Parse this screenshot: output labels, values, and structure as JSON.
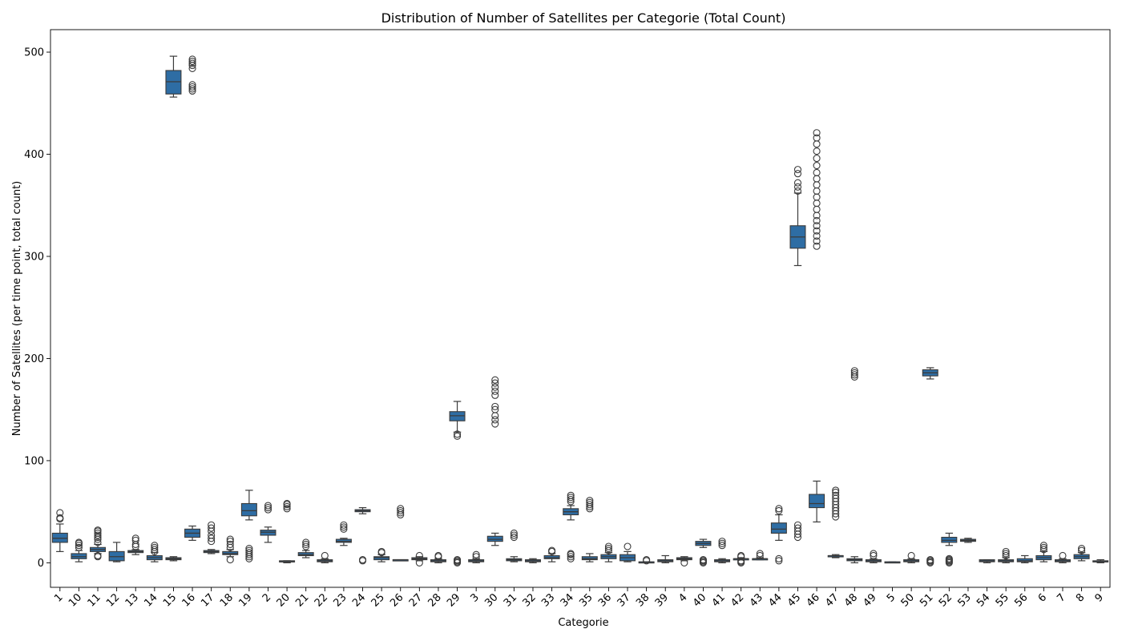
{
  "chart_data": {
    "type": "box",
    "title": "Distribution of Number of Satellites per Categorie (Total Count)",
    "xlabel": "Categorie",
    "ylabel": "Number of Satellites (per time point, total count)",
    "ylim": [
      -24,
      522
    ],
    "yticks": [
      0,
      100,
      200,
      300,
      400,
      500
    ],
    "grid": false,
    "legend": "none",
    "box_color": "#2e6da4",
    "line_color": "#3b3b3b",
    "series": [
      {
        "category": "1",
        "whislo": 11,
        "q1": 20,
        "med": 24,
        "q3": 29,
        "whishi": 38,
        "fliers": [
          43,
          44,
          49
        ]
      },
      {
        "category": "10",
        "whislo": 1,
        "q1": 4,
        "med": 6,
        "q3": 9,
        "whishi": 12,
        "fliers": [
          15,
          17,
          19,
          20
        ]
      },
      {
        "category": "11",
        "whislo": 9,
        "q1": 11,
        "med": 13,
        "q3": 15,
        "whishi": 18,
        "fliers": [
          6,
          7,
          20,
          23,
          25,
          27,
          29,
          31,
          32
        ]
      },
      {
        "category": "12",
        "whislo": 1,
        "q1": 2,
        "med": 6,
        "q3": 11,
        "whishi": 20,
        "fliers": []
      },
      {
        "category": "13",
        "whislo": 8,
        "q1": 10,
        "med": 11,
        "q3": 12,
        "whishi": 13,
        "fliers": [
          16,
          18,
          22,
          24
        ]
      },
      {
        "category": "14",
        "whislo": 1,
        "q1": 3,
        "med": 5,
        "q3": 7,
        "whishi": 10,
        "fliers": [
          11,
          13,
          15,
          17
        ]
      },
      {
        "category": "15",
        "whislo": 2,
        "q1": 3,
        "med": 4,
        "q3": 5,
        "whishi": 6,
        "fliers": []
      },
      {
        "category": "15",
        "whislo": 456,
        "q1": 459,
        "med": 471,
        "q3": 482,
        "whishi": 496,
        "fliers": []
      },
      {
        "category": "16",
        "whislo": 22,
        "q1": 25,
        "med": 29,
        "q3": 33,
        "whishi": 36,
        "fliers": []
      },
      {
        "category": "16",
        "whislo": 0,
        "q1": 0,
        "med": 0,
        "q3": 0,
        "whishi": 0,
        "fliers": [
          462,
          464,
          466,
          468,
          484,
          487,
          489,
          491,
          493
        ]
      },
      {
        "category": "17",
        "whislo": 9,
        "q1": 10,
        "med": 11,
        "q3": 12,
        "whishi": 13,
        "fliers": [
          21,
          24,
          27,
          31,
          34,
          37
        ]
      },
      {
        "category": "18",
        "whislo": 6,
        "q1": 8,
        "med": 9,
        "q3": 11,
        "whishi": 13,
        "fliers": [
          3,
          15,
          18,
          21,
          23
        ]
      },
      {
        "category": "19",
        "whislo": 42,
        "q1": 46,
        "med": 51,
        "q3": 58,
        "whishi": 71,
        "fliers": [
          4,
          6,
          8,
          10,
          12,
          14
        ]
      },
      {
        "category": "2",
        "whislo": 20,
        "q1": 27,
        "med": 30,
        "q3": 32,
        "whishi": 35,
        "fliers": [
          52,
          54,
          56
        ]
      },
      {
        "category": "20",
        "whislo": 0,
        "q1": 1,
        "med": 1,
        "q3": 2,
        "whishi": 2,
        "fliers": [
          53,
          55,
          57,
          58
        ]
      },
      {
        "category": "21",
        "whislo": 5,
        "q1": 7,
        "med": 8,
        "q3": 10,
        "whishi": 12,
        "fliers": [
          16,
          18,
          20
        ]
      },
      {
        "category": "22",
        "whislo": 0,
        "q1": 1,
        "med": 2,
        "q3": 3,
        "whishi": 4,
        "fliers": [
          7
        ]
      },
      {
        "category": "23",
        "whislo": 17,
        "q1": 20,
        "med": 21,
        "q3": 23,
        "whishi": 24,
        "fliers": [
          33,
          35,
          37
        ]
      },
      {
        "category": "24",
        "whislo": 48,
        "q1": 50,
        "med": 51,
        "q3": 52,
        "whishi": 54,
        "fliers": [
          2,
          3
        ]
      },
      {
        "category": "25",
        "whislo": 1,
        "q1": 3,
        "med": 5,
        "q3": 6,
        "whishi": 8,
        "fliers": [
          10,
          11
        ]
      },
      {
        "category": "26",
        "whislo": 2,
        "q1": 2,
        "med": 3,
        "q3": 3,
        "whishi": 3,
        "fliers": [
          47,
          49,
          51,
          53
        ]
      },
      {
        "category": "27",
        "whislo": 2,
        "q1": 3,
        "med": 4,
        "q3": 5,
        "whishi": 6,
        "fliers": [
          0,
          7
        ]
      },
      {
        "category": "28",
        "whislo": 0,
        "q1": 1,
        "med": 2,
        "q3": 3,
        "whishi": 4,
        "fliers": [
          6,
          7
        ]
      },
      {
        "category": "29",
        "whislo": 128,
        "q1": 139,
        "med": 144,
        "q3": 148,
        "whishi": 158,
        "fliers": [
          0,
          1,
          2,
          3,
          124,
          126
        ]
      },
      {
        "category": "3",
        "whislo": 0,
        "q1": 1,
        "med": 2,
        "q3": 3,
        "whishi": 4,
        "fliers": [
          6,
          8
        ]
      },
      {
        "category": "30",
        "whislo": 17,
        "q1": 21,
        "med": 23,
        "q3": 26,
        "whishi": 29,
        "fliers": [
          136,
          140,
          144,
          150,
          153,
          164,
          168,
          172,
          176,
          179
        ]
      },
      {
        "category": "31",
        "whislo": 1,
        "q1": 2,
        "med": 3,
        "q3": 4,
        "whishi": 6,
        "fliers": [
          25,
          27,
          29
        ]
      },
      {
        "category": "32",
        "whislo": 0,
        "q1": 1,
        "med": 2,
        "q3": 3,
        "whishi": 4,
        "fliers": []
      },
      {
        "category": "33",
        "whislo": 1,
        "q1": 4,
        "med": 5,
        "q3": 7,
        "whishi": 9,
        "fliers": [
          11,
          12
        ]
      },
      {
        "category": "34",
        "whislo": 42,
        "q1": 47,
        "med": 50,
        "q3": 53,
        "whishi": 56,
        "fliers": [
          4,
          6,
          8,
          9,
          60,
          62,
          64,
          66
        ]
      },
      {
        "category": "35",
        "whislo": 1,
        "q1": 3,
        "med": 4,
        "q3": 6,
        "whishi": 9,
        "fliers": [
          53,
          55,
          57,
          59,
          61
        ]
      },
      {
        "category": "36",
        "whislo": 1,
        "q1": 4,
        "med": 6,
        "q3": 8,
        "whishi": 10,
        "fliers": [
          12,
          14,
          16
        ]
      },
      {
        "category": "37",
        "whislo": 1,
        "q1": 2,
        "med": 5,
        "q3": 8,
        "whishi": 11,
        "fliers": [
          16
        ]
      },
      {
        "category": "38",
        "whislo": 0,
        "q1": 0,
        "med": 0,
        "q3": 1,
        "whishi": 1,
        "fliers": [
          2,
          3
        ]
      },
      {
        "category": "39",
        "whislo": 0,
        "q1": 1,
        "med": 2,
        "q3": 3,
        "whishi": 7,
        "fliers": []
      },
      {
        "category": "4",
        "whislo": 2,
        "q1": 3,
        "med": 4,
        "q3": 5,
        "whishi": 6,
        "fliers": [
          0
        ]
      },
      {
        "category": "40",
        "whislo": 15,
        "q1": 17,
        "med": 19,
        "q3": 21,
        "whishi": 23,
        "fliers": [
          0,
          1,
          2,
          3
        ]
      },
      {
        "category": "41",
        "whislo": 0,
        "q1": 1,
        "med": 2,
        "q3": 3,
        "whishi": 4,
        "fliers": [
          17,
          19,
          21
        ]
      },
      {
        "category": "42",
        "whislo": 3,
        "q1": 3,
        "med": 4,
        "q3": 4,
        "whishi": 5,
        "fliers": [
          0,
          1,
          2,
          6,
          7
        ]
      },
      {
        "category": "43",
        "whislo": 3,
        "q1": 3,
        "med": 4,
        "q3": 4,
        "whishi": 5,
        "fliers": [
          7,
          9
        ]
      },
      {
        "category": "44",
        "whislo": 22,
        "q1": 29,
        "med": 33,
        "q3": 39,
        "whishi": 47,
        "fliers": [
          2,
          4,
          51,
          53
        ]
      },
      {
        "category": "45",
        "whislo": 291,
        "q1": 308,
        "med": 319,
        "q3": 330,
        "whishi": 362,
        "fliers": [
          364,
          368,
          372,
          381,
          385,
          25,
          28,
          31,
          34,
          37
        ]
      },
      {
        "category": "46",
        "whislo": 40,
        "q1": 54,
        "med": 58,
        "q3": 67,
        "whishi": 80,
        "fliers": [
          310,
          315,
          320,
          325,
          330,
          335,
          340,
          346,
          352,
          358,
          364,
          370,
          376,
          382,
          389,
          396,
          403,
          410,
          416,
          421
        ]
      },
      {
        "category": "47",
        "whislo": 5,
        "q1": 6,
        "med": 7,
        "q3": 7,
        "whishi": 8,
        "fliers": [
          45,
          48,
          51,
          54,
          57,
          60,
          63,
          66,
          69,
          71
        ]
      },
      {
        "category": "48",
        "whislo": 0,
        "q1": 2,
        "med": 3,
        "q3": 4,
        "whishi": 6,
        "fliers": [
          182,
          184,
          186,
          188
        ]
      },
      {
        "category": "49",
        "whislo": 0,
        "q1": 1,
        "med": 2,
        "q3": 3,
        "whishi": 4,
        "fliers": [
          7,
          9
        ]
      },
      {
        "category": "5",
        "whislo": 0,
        "q1": 0,
        "med": 0,
        "q3": 1,
        "whishi": 1,
        "fliers": []
      },
      {
        "category": "50",
        "whislo": 0,
        "q1": 1,
        "med": 2,
        "q3": 3,
        "whishi": 4,
        "fliers": [
          7
        ]
      },
      {
        "category": "51",
        "whislo": 180,
        "q1": 183,
        "med": 186,
        "q3": 189,
        "whishi": 191,
        "fliers": [
          0,
          1,
          2,
          3
        ]
      },
      {
        "category": "52",
        "whislo": 17,
        "q1": 20,
        "med": 22,
        "q3": 25,
        "whishi": 29,
        "fliers": [
          0,
          1,
          2,
          3,
          4
        ]
      },
      {
        "category": "53",
        "whislo": 20,
        "q1": 21,
        "med": 22,
        "q3": 23,
        "whishi": 24,
        "fliers": []
      },
      {
        "category": "54",
        "whislo": 0,
        "q1": 1,
        "med": 2,
        "q3": 3,
        "whishi": 3,
        "fliers": []
      },
      {
        "category": "55",
        "whislo": 0,
        "q1": 1,
        "med": 2,
        "q3": 3,
        "whishi": 5,
        "fliers": [
          7,
          9,
          11
        ]
      },
      {
        "category": "56",
        "whislo": 0,
        "q1": 1,
        "med": 2,
        "q3": 4,
        "whishi": 7,
        "fliers": []
      },
      {
        "category": "6",
        "whislo": 1,
        "q1": 3,
        "med": 5,
        "q3": 7,
        "whishi": 11,
        "fliers": [
          13,
          15,
          17
        ]
      },
      {
        "category": "7",
        "whislo": 0,
        "q1": 1,
        "med": 2,
        "q3": 3,
        "whishi": 4,
        "fliers": [
          7
        ]
      },
      {
        "category": "8",
        "whislo": 2,
        "q1": 4,
        "med": 6,
        "q3": 8,
        "whishi": 10,
        "fliers": [
          12,
          14
        ]
      },
      {
        "category": "9",
        "whislo": 0,
        "q1": 1,
        "med": 1,
        "q3": 2,
        "whishi": 3,
        "fliers": []
      }
    ]
  }
}
